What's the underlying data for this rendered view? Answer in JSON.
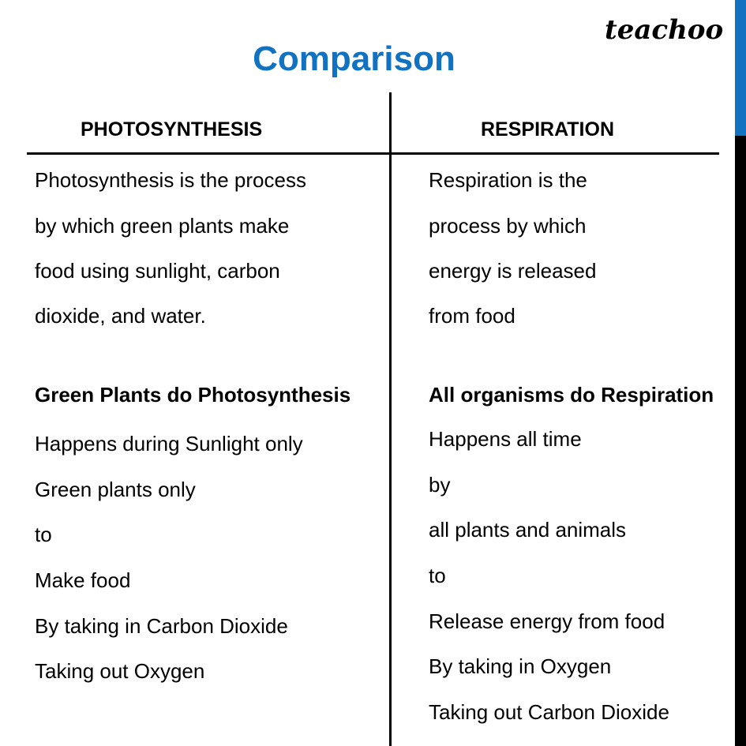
{
  "title": "Comparison",
  "logo": "teachoo",
  "colors": {
    "accent": "#1072C0"
  },
  "columns": [
    {
      "header": "PHOTOSYNTHESIS",
      "definition": [
        "Photosynthesis is the process",
        "by which green plants make",
        "food using sunlight, carbon",
        "dioxide, and water."
      ],
      "summary": "Green Plants do Photosynthesis",
      "points": [
        "Happens during Sunlight only",
        "Green plants only",
        "to",
        "Make food",
        "By taking in Carbon Dioxide",
        "Taking out Oxygen"
      ]
    },
    {
      "header": "RESPIRATION",
      "definition": [
        "Respiration is the",
        "process by which",
        "energy is released",
        "from food"
      ],
      "summary": "All organisms do  Respiration",
      "points": [
        "Happens all time",
        "by",
        "all plants and animals",
        "to",
        "Release energy from food",
        "By taking in Oxygen",
        "Taking out Carbon Dioxide"
      ]
    }
  ]
}
